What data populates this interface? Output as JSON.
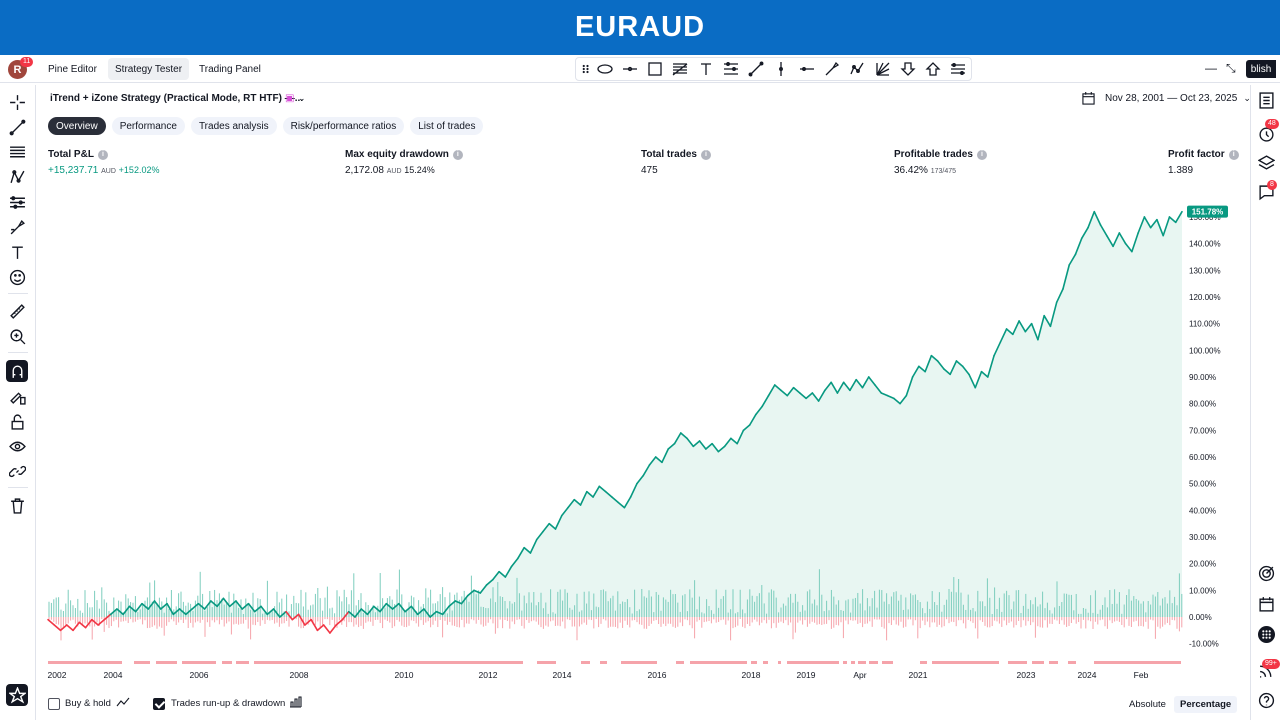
{
  "banner": {
    "title": "EURAUD"
  },
  "topbar": {
    "avatar_letter": "R",
    "avatar_badge": "11",
    "tabs": [
      {
        "label": "Pine Editor"
      },
      {
        "label": "Strategy Tester"
      },
      {
        "label": "Trading Panel"
      }
    ],
    "publish_label": "blish"
  },
  "strategy": {
    "name": "iTrend + iZone Strategy (Practical Mode, RT HTF) —...",
    "date_range": "Nov 28, 2001 — Oct 23, 2025"
  },
  "subtabs": [
    {
      "label": "Overview"
    },
    {
      "label": "Performance"
    },
    {
      "label": "Trades analysis"
    },
    {
      "label": "Risk/performance ratios"
    },
    {
      "label": "List of trades"
    }
  ],
  "metrics": {
    "total_pnl": {
      "label": "Total P&L",
      "value": "+15,237.71",
      "unit": "AUD",
      "pct": "+152.02%"
    },
    "max_dd": {
      "label": "Max equity drawdown",
      "value": "2,172.08",
      "unit": "AUD",
      "pct": "15.24%"
    },
    "total_trades": {
      "label": "Total trades",
      "value": "475"
    },
    "profitable": {
      "label": "Profitable trades",
      "value": "36.42%",
      "sub": "173/475"
    },
    "profit_factor": {
      "label": "Profit factor",
      "value": "1.389"
    }
  },
  "right_badges": {
    "alerts": "48",
    "chat": "8",
    "notifications": "99+"
  },
  "footer": {
    "buy_hold_label": "Buy & hold",
    "buy_hold_checked": false,
    "runup_label": "Trades run-up & drawdown",
    "runup_checked": true,
    "absolute_label": "Absolute",
    "percentage_label": "Percentage"
  },
  "chart_data": {
    "type": "line",
    "last_value_label": "151.78%",
    "y_ticks": [
      "150.00%",
      "140.00%",
      "130.00%",
      "120.00%",
      "110.00%",
      "100.00%",
      "90.00%",
      "80.00%",
      "70.00%",
      "60.00%",
      "50.00%",
      "40.00%",
      "30.00%",
      "20.00%",
      "10.00%",
      "0.00%",
      "-10.00%"
    ],
    "x_ticks": [
      "2002",
      "2004",
      "2006",
      "2008",
      "2010",
      "2012",
      "2014",
      "2016",
      "2018",
      "2019",
      "Apr",
      "2021",
      "2023",
      "2024",
      "Feb"
    ],
    "ylim": [
      -10,
      152
    ],
    "colors": {
      "equity": "#089981",
      "drawdown": "#f23645",
      "runup": "#089981",
      "area": "#e8f6f2"
    },
    "equity_pct": [
      [
        0,
        -1
      ],
      [
        1,
        -3
      ],
      [
        2,
        -5
      ],
      [
        3,
        -3
      ],
      [
        4,
        -5
      ],
      [
        5,
        -2
      ],
      [
        6,
        -4
      ],
      [
        7,
        -1
      ],
      [
        8,
        -3
      ],
      [
        9,
        -1
      ],
      [
        10,
        1
      ],
      [
        11,
        3
      ],
      [
        12,
        1
      ],
      [
        13,
        4
      ],
      [
        14,
        2
      ],
      [
        15,
        5
      ],
      [
        16,
        3
      ],
      [
        17,
        6
      ],
      [
        18,
        3
      ],
      [
        19,
        5
      ],
      [
        20,
        1
      ],
      [
        21,
        3
      ],
      [
        22,
        1
      ],
      [
        23,
        3
      ],
      [
        24,
        5
      ],
      [
        25,
        3
      ],
      [
        26,
        6
      ],
      [
        27,
        4
      ],
      [
        28,
        7
      ],
      [
        29,
        4
      ],
      [
        30,
        6
      ],
      [
        31,
        3
      ],
      [
        32,
        5
      ],
      [
        33,
        2
      ],
      [
        34,
        4
      ],
      [
        35,
        1
      ],
      [
        36,
        3
      ],
      [
        37,
        0
      ],
      [
        38,
        2
      ],
      [
        39,
        -1
      ],
      [
        40,
        1
      ],
      [
        41,
        -3
      ],
      [
        42,
        -1
      ],
      [
        43,
        -5
      ],
      [
        44,
        -3
      ],
      [
        45,
        -6
      ],
      [
        46,
        -3
      ],
      [
        47,
        -1
      ],
      [
        48,
        2
      ],
      [
        49,
        0
      ],
      [
        50,
        3
      ],
      [
        51,
        1
      ],
      [
        52,
        4
      ],
      [
        53,
        2
      ],
      [
        54,
        5
      ],
      [
        55,
        3
      ],
      [
        56,
        5
      ],
      [
        57,
        2
      ],
      [
        58,
        4
      ],
      [
        59,
        1
      ],
      [
        60,
        3
      ],
      [
        61,
        0
      ],
      [
        62,
        2
      ],
      [
        63,
        1
      ],
      [
        64,
        4
      ],
      [
        65,
        6
      ],
      [
        66,
        5
      ],
      [
        67,
        8
      ],
      [
        68,
        10
      ],
      [
        69,
        9
      ],
      [
        70,
        12
      ],
      [
        71,
        14
      ],
      [
        72,
        17
      ],
      [
        73,
        15
      ],
      [
        74,
        19
      ],
      [
        75,
        22
      ],
      [
        76,
        26
      ],
      [
        77,
        24
      ],
      [
        78,
        29
      ],
      [
        79,
        32
      ],
      [
        80,
        35
      ],
      [
        81,
        33
      ],
      [
        82,
        38
      ],
      [
        83,
        41
      ],
      [
        84,
        44
      ],
      [
        85,
        42
      ],
      [
        86,
        47
      ],
      [
        87,
        45
      ],
      [
        88,
        49
      ],
      [
        89,
        47
      ],
      [
        90,
        45
      ],
      [
        91,
        43
      ],
      [
        92,
        41
      ],
      [
        93,
        45
      ],
      [
        94,
        50
      ],
      [
        95,
        53
      ],
      [
        96,
        57
      ],
      [
        97,
        60
      ],
      [
        98,
        58
      ],
      [
        99,
        63
      ],
      [
        100,
        65
      ],
      [
        101,
        69
      ],
      [
        102,
        67
      ],
      [
        103,
        64
      ],
      [
        104,
        66
      ],
      [
        105,
        63
      ],
      [
        106,
        65
      ],
      [
        107,
        62
      ],
      [
        108,
        64
      ],
      [
        109,
        67
      ],
      [
        110,
        65
      ],
      [
        111,
        70
      ],
      [
        112,
        72
      ],
      [
        113,
        76
      ],
      [
        114,
        79
      ],
      [
        115,
        83
      ],
      [
        116,
        87
      ],
      [
        117,
        85
      ],
      [
        118,
        83
      ],
      [
        119,
        86
      ],
      [
        120,
        84
      ],
      [
        121,
        82
      ],
      [
        122,
        84
      ],
      [
        123,
        81
      ],
      [
        124,
        85
      ],
      [
        125,
        88
      ],
      [
        126,
        84
      ],
      [
        127,
        88
      ],
      [
        128,
        85
      ],
      [
        129,
        89
      ],
      [
        130,
        86
      ],
      [
        131,
        90
      ],
      [
        132,
        87
      ],
      [
        133,
        84
      ],
      [
        134,
        83
      ],
      [
        135,
        82
      ],
      [
        136,
        80
      ],
      [
        137,
        83
      ],
      [
        138,
        90
      ],
      [
        139,
        94
      ],
      [
        140,
        92
      ],
      [
        141,
        98
      ],
      [
        142,
        96
      ],
      [
        143,
        93
      ],
      [
        144,
        91
      ],
      [
        145,
        96
      ],
      [
        146,
        94
      ],
      [
        147,
        91
      ],
      [
        148,
        86
      ],
      [
        149,
        92
      ],
      [
        150,
        90
      ],
      [
        151,
        98
      ],
      [
        152,
        103
      ],
      [
        153,
        108
      ],
      [
        154,
        106
      ],
      [
        155,
        111
      ],
      [
        156,
        107
      ],
      [
        157,
        110
      ],
      [
        158,
        104
      ],
      [
        159,
        113
      ],
      [
        160,
        109
      ],
      [
        161,
        118
      ],
      [
        162,
        123
      ],
      [
        163,
        132
      ],
      [
        164,
        136
      ],
      [
        165,
        142
      ],
      [
        166,
        146
      ],
      [
        167,
        152
      ],
      [
        168,
        147
      ],
      [
        169,
        143
      ],
      [
        170,
        139
      ],
      [
        171,
        144
      ],
      [
        172,
        140
      ],
      [
        173,
        137
      ],
      [
        174,
        144
      ],
      [
        175,
        150
      ],
      [
        176,
        146
      ],
      [
        177,
        149
      ],
      [
        178,
        143
      ],
      [
        179,
        150
      ],
      [
        180,
        148
      ],
      [
        181,
        152
      ]
    ]
  }
}
